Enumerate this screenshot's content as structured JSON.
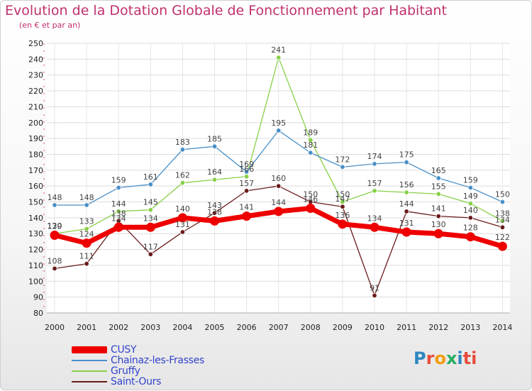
{
  "chart_data": {
    "type": "line",
    "title": "Evolution de la Dotation Globale de Fonctionnement par Habitant",
    "subtitle": "(en € et par an)",
    "x": [
      "2000",
      "2001",
      "2002",
      "2003",
      "2004",
      "2005",
      "2006",
      "2007",
      "2008",
      "2009",
      "2010",
      "2011",
      "2012",
      "2013",
      "2014"
    ],
    "ylim": [
      80,
      250
    ],
    "yticks": [
      80,
      90,
      100,
      110,
      120,
      130,
      140,
      150,
      160,
      170,
      180,
      190,
      200,
      210,
      220,
      230,
      240,
      250
    ],
    "grid": true,
    "series": [
      {
        "name": "Saint-Ours",
        "color": "#6b1b1b",
        "values": [
          108,
          111,
          138,
          117,
          131,
          143,
          157,
          160,
          150,
          147,
          91,
          144,
          141,
          140,
          134
        ]
      },
      {
        "name": "Gruffy",
        "color": "#88d048",
        "values": [
          130,
          133,
          144,
          145,
          162,
          164,
          166,
          241,
          189,
          150,
          157,
          156,
          155,
          149,
          138
        ]
      },
      {
        "name": "Chainaz-les-Frasses",
        "color": "#4a90c8",
        "values": [
          148,
          148,
          159,
          161,
          183,
          185,
          169,
          195,
          181,
          172,
          174,
          175,
          165,
          159,
          150
        ]
      },
      {
        "name": "CUSY",
        "color": "#ee0000",
        "values": [
          129,
          124,
          134,
          134,
          140,
          138,
          141,
          144,
          146,
          136,
          134,
          131,
          130,
          128,
          122
        ]
      }
    ],
    "legend": [
      "CUSY",
      "Chainaz-les-Frasses",
      "Gruffy",
      "Saint-Ours"
    ]
  },
  "brand": {
    "letters": [
      "P",
      "r",
      "o",
      "x",
      "i",
      "ti"
    ]
  }
}
